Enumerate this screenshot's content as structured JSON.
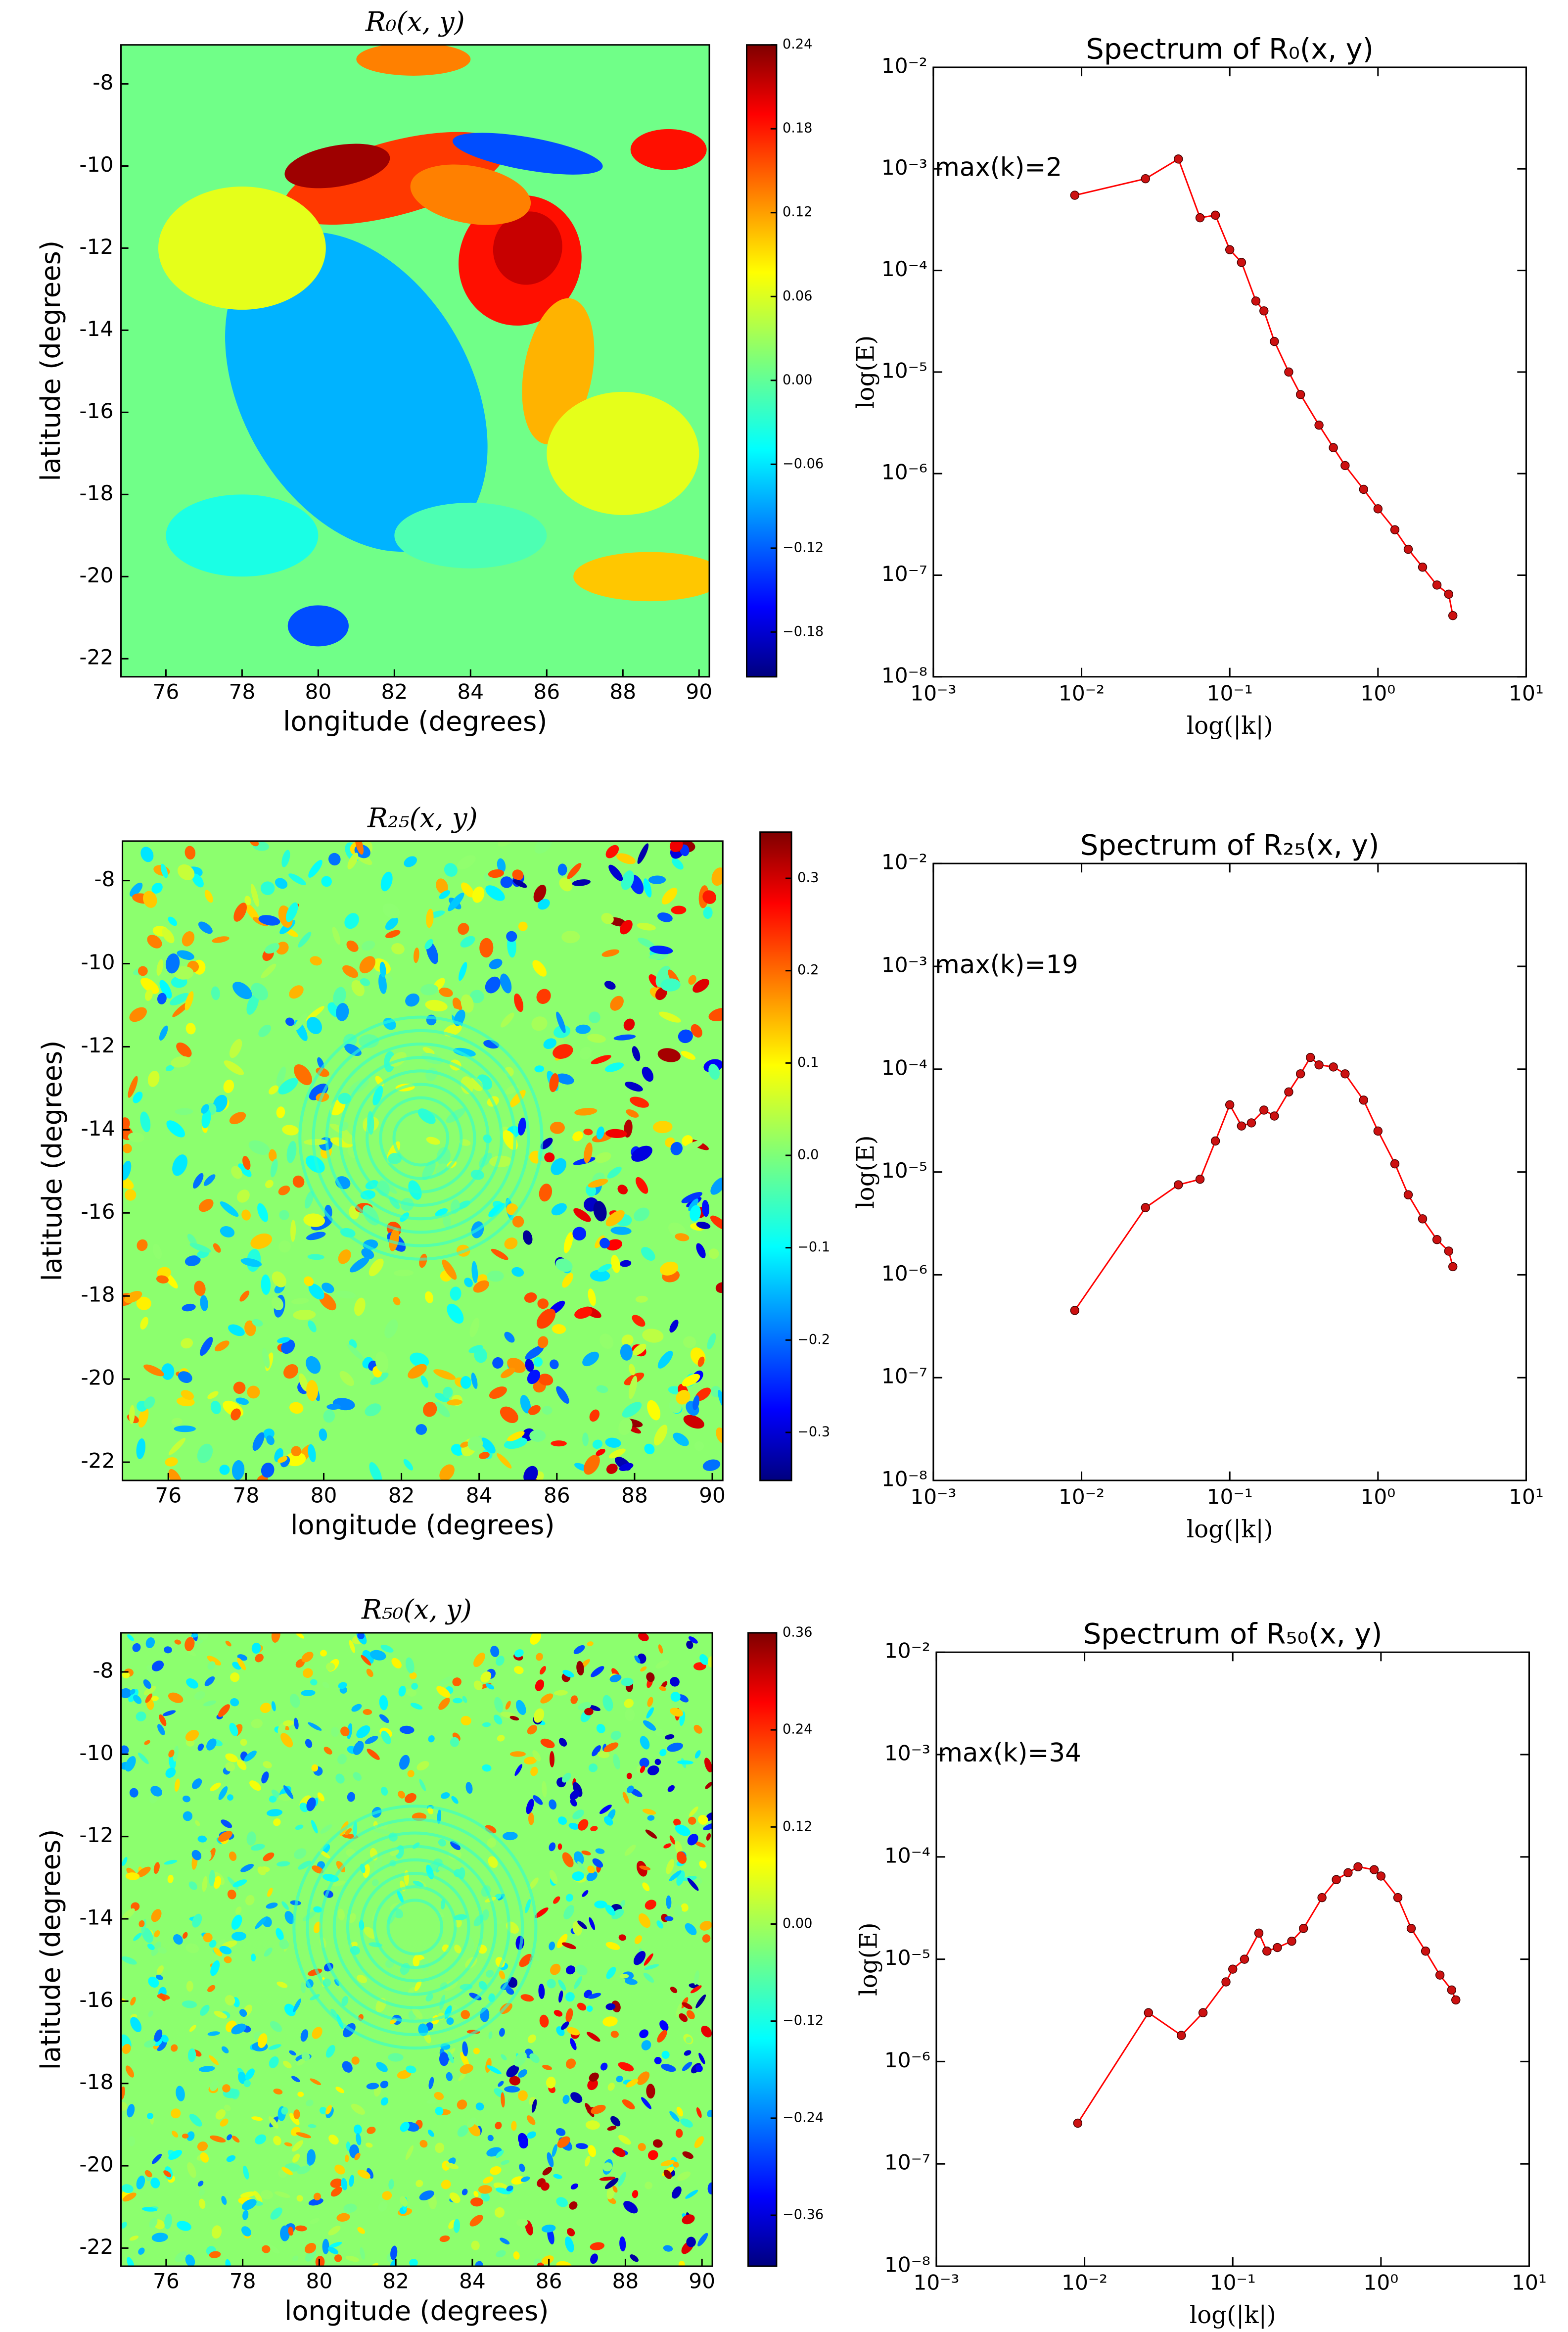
{
  "chart_data": [
    {
      "type": "contour",
      "title": "R₀(x, y)",
      "xlabel": "longitude (degrees)",
      "ylabel": "latitude (degrees)",
      "xlim": [
        74.82,
        90.27
      ],
      "xticks": [
        76,
        78,
        80,
        82,
        84,
        86,
        88,
        90
      ],
      "ylim": [
        -22.44,
        -7.05
      ],
      "yticks": [
        -8,
        -10,
        -12,
        -14,
        -16,
        -18,
        -20,
        -22
      ],
      "clim": [
        -0.212,
        0.24
      ],
      "cticks": [
        0.24,
        0.18,
        0.12,
        0.06,
        {
          "value": 0,
          "label": "0.00"
        },
        {
          "value": -0.06,
          "label": "−0.06"
        },
        {
          "value": -0.12,
          "label": "−0.12"
        },
        {
          "value": -0.18,
          "label": "−0.18"
        }
      ],
      "colormap": "jet"
    },
    {
      "type": "line",
      "title": "Spectrum of R₀(x, y)",
      "xlabel": "log(|k|)",
      "ylabel": "log(E)",
      "annotation": "max(k)=2",
      "log_x": true,
      "log_y": true,
      "color": "#ff0000",
      "marker_color": "#cc1111",
      "xlim": [
        0.001,
        10
      ],
      "xticks": [
        {
          "value": 0.001,
          "label": "10⁻³"
        },
        {
          "value": 0.01,
          "label": "10⁻²"
        },
        {
          "value": 0.1,
          "label": "10⁻¹"
        },
        {
          "value": 1,
          "label": "10⁰"
        },
        {
          "value": 10,
          "label": "10¹"
        }
      ],
      "ylim": [
        1e-08,
        0.01
      ],
      "yticks": [
        {
          "value": 1e-08,
          "label": "10⁻⁸"
        },
        {
          "value": 1e-07,
          "label": "10⁻⁷"
        },
        {
          "value": 1e-06,
          "label": "10⁻⁶"
        },
        {
          "value": 1e-05,
          "label": "10⁻⁵"
        },
        {
          "value": 0.0001,
          "label": "10⁻⁴"
        },
        {
          "value": 0.001,
          "label": "10⁻³"
        },
        {
          "value": 0.01,
          "label": "10⁻²"
        }
      ],
      "x": [
        0.009,
        0.027,
        0.045,
        0.063,
        0.08,
        0.1,
        0.12,
        0.15,
        0.17,
        0.2,
        0.25,
        0.3,
        0.4,
        0.5,
        0.6,
        0.8,
        1.0,
        1.3,
        1.6,
        2.0,
        2.5,
        3.0,
        3.2
      ],
      "values": [
        0.00055,
        0.0008,
        0.00125,
        0.00033,
        0.00035,
        0.00016,
        0.00012,
        5e-05,
        4e-05,
        2e-05,
        1e-05,
        6e-06,
        3e-06,
        1.8e-06,
        1.2e-06,
        7e-07,
        4.5e-07,
        2.8e-07,
        1.8e-07,
        1.2e-07,
        8e-08,
        6.5e-08,
        4e-08
      ]
    },
    {
      "type": "contour",
      "title": "R₂₅(x, y)",
      "xlabel": "longitude (degrees)",
      "ylabel": "latitude (degrees)",
      "xlim": [
        74.82,
        90.27
      ],
      "xticks": [
        76,
        78,
        80,
        82,
        84,
        86,
        88,
        90
      ],
      "ylim": [
        -22.44,
        -7.05
      ],
      "yticks": [
        -8,
        -10,
        -12,
        -14,
        -16,
        -18,
        -20,
        -22
      ],
      "clim": [
        -0.352,
        0.35
      ],
      "cticks": [
        0.3,
        0.2,
        0.1,
        {
          "value": 0,
          "label": "0.0"
        },
        {
          "value": -0.1,
          "label": "−0.1"
        },
        {
          "value": -0.2,
          "label": "−0.2"
        },
        {
          "value": -0.3,
          "label": "−0.3"
        }
      ],
      "colormap": "jet"
    },
    {
      "type": "line",
      "title": "Spectrum of R₂₅(x, y)",
      "xlabel": "log(|k|)",
      "ylabel": "log(E)",
      "annotation": "max(k)=19",
      "log_x": true,
      "log_y": true,
      "color": "#ff0000",
      "marker_color": "#cc1111",
      "xlim": [
        0.001,
        10
      ],
      "xticks": [
        {
          "value": 0.001,
          "label": "10⁻³"
        },
        {
          "value": 0.01,
          "label": "10⁻²"
        },
        {
          "value": 0.1,
          "label": "10⁻¹"
        },
        {
          "value": 1,
          "label": "10⁰"
        },
        {
          "value": 10,
          "label": "10¹"
        }
      ],
      "ylim": [
        1e-08,
        0.01
      ],
      "yticks": [
        {
          "value": 1e-08,
          "label": "10⁻⁸"
        },
        {
          "value": 1e-07,
          "label": "10⁻⁷"
        },
        {
          "value": 1e-06,
          "label": "10⁻⁶"
        },
        {
          "value": 1e-05,
          "label": "10⁻⁵"
        },
        {
          "value": 0.0001,
          "label": "10⁻⁴"
        },
        {
          "value": 0.001,
          "label": "10⁻³"
        },
        {
          "value": 0.01,
          "label": "10⁻²"
        }
      ],
      "x": [
        0.009,
        0.027,
        0.045,
        0.063,
        0.08,
        0.1,
        0.12,
        0.14,
        0.17,
        0.2,
        0.25,
        0.3,
        0.35,
        0.4,
        0.5,
        0.6,
        0.8,
        1.0,
        1.3,
        1.6,
        2.0,
        2.5,
        3.0,
        3.2
      ],
      "values": [
        4.5e-07,
        4.5e-06,
        7.5e-06,
        8.5e-06,
        2e-05,
        4.5e-05,
        2.8e-05,
        3e-05,
        4e-05,
        3.5e-05,
        6e-05,
        9e-05,
        0.00013,
        0.00011,
        0.000105,
        9e-05,
        5e-05,
        2.5e-05,
        1.2e-05,
        6e-06,
        3.5e-06,
        2.2e-06,
        1.7e-06,
        1.2e-06
      ]
    },
    {
      "type": "contour",
      "title": "R₅₀(x, y)",
      "xlabel": "longitude (degrees)",
      "ylabel": "latitude (degrees)",
      "xlim": [
        74.82,
        90.27
      ],
      "xticks": [
        76,
        78,
        80,
        82,
        84,
        86,
        88,
        90
      ],
      "ylim": [
        -22.44,
        -7.05
      ],
      "yticks": [
        -8,
        -10,
        -12,
        -14,
        -16,
        -18,
        -20,
        -22
      ],
      "clim": [
        -0.423,
        0.36
      ],
      "cticks": [
        0.36,
        0.24,
        0.12,
        {
          "value": 0,
          "label": "0.00"
        },
        {
          "value": -0.12,
          "label": "−0.12"
        },
        {
          "value": -0.24,
          "label": "−0.24"
        },
        {
          "value": -0.36,
          "label": "−0.36"
        }
      ],
      "colormap": "jet"
    },
    {
      "type": "line",
      "title": "Spectrum of R₅₀(x, y)",
      "xlabel": "log(|k|)",
      "ylabel": "log(E)",
      "annotation": "max(k)=34",
      "log_x": true,
      "log_y": true,
      "color": "#ff0000",
      "marker_color": "#cc1111",
      "xlim": [
        0.001,
        10
      ],
      "xticks": [
        {
          "value": 0.001,
          "label": "10⁻³"
        },
        {
          "value": 0.01,
          "label": "10⁻²"
        },
        {
          "value": 0.1,
          "label": "10⁻¹"
        },
        {
          "value": 1,
          "label": "10⁰"
        },
        {
          "value": 10,
          "label": "10¹"
        }
      ],
      "ylim": [
        1e-08,
        0.01
      ],
      "yticks": [
        {
          "value": 1e-08,
          "label": "10⁻⁸"
        },
        {
          "value": 1e-07,
          "label": "10⁻⁷"
        },
        {
          "value": 1e-06,
          "label": "10⁻⁶"
        },
        {
          "value": 1e-05,
          "label": "10⁻⁵"
        },
        {
          "value": 0.0001,
          "label": "10⁻⁴"
        },
        {
          "value": 0.001,
          "label": "10⁻³"
        },
        {
          "value": 0.01,
          "label": "10⁻²"
        }
      ],
      "x": [
        0.009,
        0.027,
        0.045,
        0.063,
        0.09,
        0.1,
        0.12,
        0.15,
        0.17,
        0.2,
        0.25,
        0.3,
        0.4,
        0.5,
        0.6,
        0.7,
        0.9,
        1.0,
        1.3,
        1.6,
        2.0,
        2.5,
        3.0,
        3.2
      ],
      "values": [
        2.5e-07,
        3e-06,
        1.8e-06,
        3e-06,
        6e-06,
        8e-06,
        1e-05,
        1.8e-05,
        1.2e-05,
        1.3e-05,
        1.5e-05,
        2e-05,
        4e-05,
        6e-05,
        7e-05,
        8e-05,
        7.5e-05,
        6.5e-05,
        4e-05,
        2e-05,
        1.2e-05,
        7e-06,
        5e-06,
        4e-06
      ]
    }
  ]
}
